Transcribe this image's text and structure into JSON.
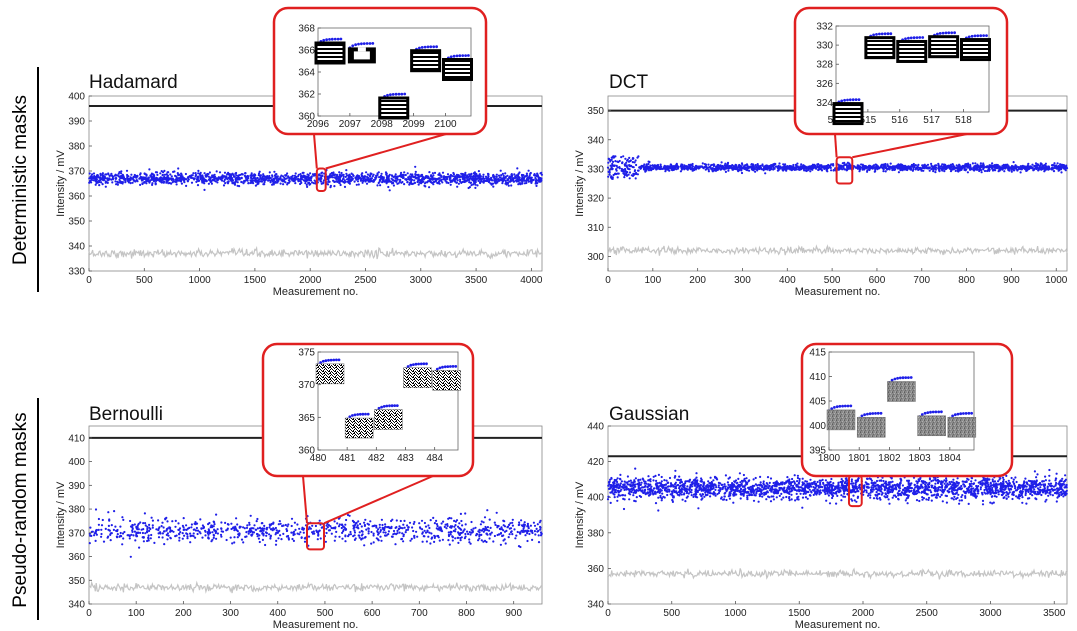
{
  "row_labels": [
    "Deterministic masks",
    "Pseudo-random masks"
  ],
  "colors": {
    "reference": "#222222",
    "signal": "#1f1fe8",
    "background": "#c4c4c4",
    "highlight": "#e02020"
  },
  "chart_data": [
    {
      "type": "scatter",
      "title": "Hadamard",
      "xlabel": "Measurement no.",
      "ylabel": "Intensity / mV",
      "xlim": [
        0,
        4096
      ],
      "ylim": [
        330,
        400
      ],
      "xticks": [
        0,
        500,
        1000,
        1500,
        2000,
        2500,
        3000,
        3500,
        4000
      ],
      "yticks": [
        330,
        340,
        350,
        360,
        370,
        380,
        390,
        400
      ],
      "reference_level": 396,
      "signal_mean": 367,
      "signal_spread": 1.2,
      "background_mean": 337,
      "background_spread": 0.8,
      "highlight_x": [
        2060,
        2140
      ],
      "highlight_y": [
        362,
        371
      ],
      "inset": {
        "xlim": [
          2096,
          2100.8
        ],
        "ylim": [
          360,
          368
        ],
        "xticks": [
          2096,
          2097,
          2098,
          2099,
          2100
        ],
        "yticks": [
          360,
          362,
          364,
          366,
          368
        ],
        "segments": [
          {
            "x0": 2096.0,
            "y": 367.0,
            "mask": "stripes"
          },
          {
            "x0": 2097.0,
            "y": 366.6,
            "mask": "blocks"
          },
          {
            "x0": 2098.0,
            "y": 362.0,
            "mask": "stripes"
          },
          {
            "x0": 2099.0,
            "y": 366.3,
            "mask": "stripes"
          },
          {
            "x0": 2100.0,
            "y": 365.5,
            "mask": "stripes"
          }
        ]
      }
    },
    {
      "type": "scatter",
      "title": "DCT",
      "xlabel": "Measurement no.",
      "ylabel": "Intensity / mV",
      "xlim": [
        0,
        1024
      ],
      "ylim": [
        295,
        355
      ],
      "xticks": [
        0,
        100,
        200,
        300,
        400,
        500,
        600,
        700,
        800,
        900,
        1000
      ],
      "yticks": [
        300,
        310,
        320,
        330,
        340,
        350
      ],
      "reference_level": 350,
      "signal_mean": 330.5,
      "signal_spread": 0.6,
      "background_mean": 302,
      "background_spread": 0.6,
      "highlight_x": [
        510,
        545
      ],
      "highlight_y": [
        325,
        334
      ],
      "inset": {
        "xlim": [
          514,
          518.8
        ],
        "ylim": [
          323,
          332
        ],
        "xticks": [
          514,
          515,
          516,
          517,
          518
        ],
        "yticks": [
          324,
          326,
          328,
          330,
          332
        ],
        "segments": [
          {
            "x0": 514.0,
            "y": 324.3,
            "mask": "stripes"
          },
          {
            "x0": 515.0,
            "y": 331.2,
            "mask": "stripes"
          },
          {
            "x0": 516.0,
            "y": 330.8,
            "mask": "stripes"
          },
          {
            "x0": 517.0,
            "y": 331.3,
            "mask": "stripes"
          },
          {
            "x0": 518.0,
            "y": 331.0,
            "mask": "stripes"
          }
        ]
      }
    },
    {
      "type": "scatter",
      "title": "Bernoulli",
      "xlabel": "Measurement no.",
      "ylabel": "Intensity / mV",
      "xlim": [
        0,
        960
      ],
      "ylim": [
        340,
        415
      ],
      "xticks": [
        0,
        100,
        200,
        300,
        400,
        500,
        600,
        700,
        800,
        900
      ],
      "yticks": [
        340,
        350,
        360,
        370,
        380,
        390,
        400,
        410
      ],
      "reference_level": 410,
      "signal_mean": 371,
      "signal_spread": 2.6,
      "background_mean": 347,
      "background_spread": 0.8,
      "highlight_x": [
        462,
        498
      ],
      "highlight_y": [
        363,
        374
      ],
      "inset": {
        "xlim": [
          480,
          484.8
        ],
        "ylim": [
          360,
          375
        ],
        "xticks": [
          480,
          481,
          482,
          483,
          484
        ],
        "yticks": [
          360,
          365,
          370,
          375
        ],
        "segments": [
          {
            "x0": 480.0,
            "y": 373.8,
            "mask": "noise"
          },
          {
            "x0": 481.0,
            "y": 365.5,
            "mask": "noise"
          },
          {
            "x0": 482.0,
            "y": 366.8,
            "mask": "noise"
          },
          {
            "x0": 483.0,
            "y": 373.2,
            "mask": "noise"
          },
          {
            "x0": 484.0,
            "y": 372.8,
            "mask": "noise"
          }
        ]
      }
    },
    {
      "type": "scatter",
      "title": "Gaussian",
      "xlabel": "Measurement no.",
      "ylabel": "Intensity / mV",
      "xlim": [
        0,
        3600
      ],
      "ylim": [
        340,
        440
      ],
      "xticks": [
        0,
        500,
        1000,
        1500,
        2000,
        2500,
        3000,
        3500
      ],
      "yticks": [
        340,
        360,
        380,
        400,
        420,
        440
      ],
      "reference_level": 423,
      "signal_mean": 405,
      "signal_spread": 3.0,
      "background_mean": 357,
      "background_spread": 1.0,
      "highlight_x": [
        1890,
        1990
      ],
      "highlight_y": [
        395,
        412
      ],
      "inset": {
        "xlim": [
          1800,
          1804.8
        ],
        "ylim": [
          395,
          415
        ],
        "xticks": [
          1800,
          1801,
          1802,
          1803,
          1804
        ],
        "yticks": [
          395,
          400,
          405,
          410,
          415
        ],
        "segments": [
          {
            "x0": 1800.0,
            "y": 404.0,
            "mask": "gray"
          },
          {
            "x0": 1801.0,
            "y": 402.5,
            "mask": "gray"
          },
          {
            "x0": 1802.0,
            "y": 409.8,
            "mask": "gray"
          },
          {
            "x0": 1803.0,
            "y": 402.8,
            "mask": "gray"
          },
          {
            "x0": 1804.0,
            "y": 402.5,
            "mask": "gray"
          }
        ]
      }
    }
  ]
}
